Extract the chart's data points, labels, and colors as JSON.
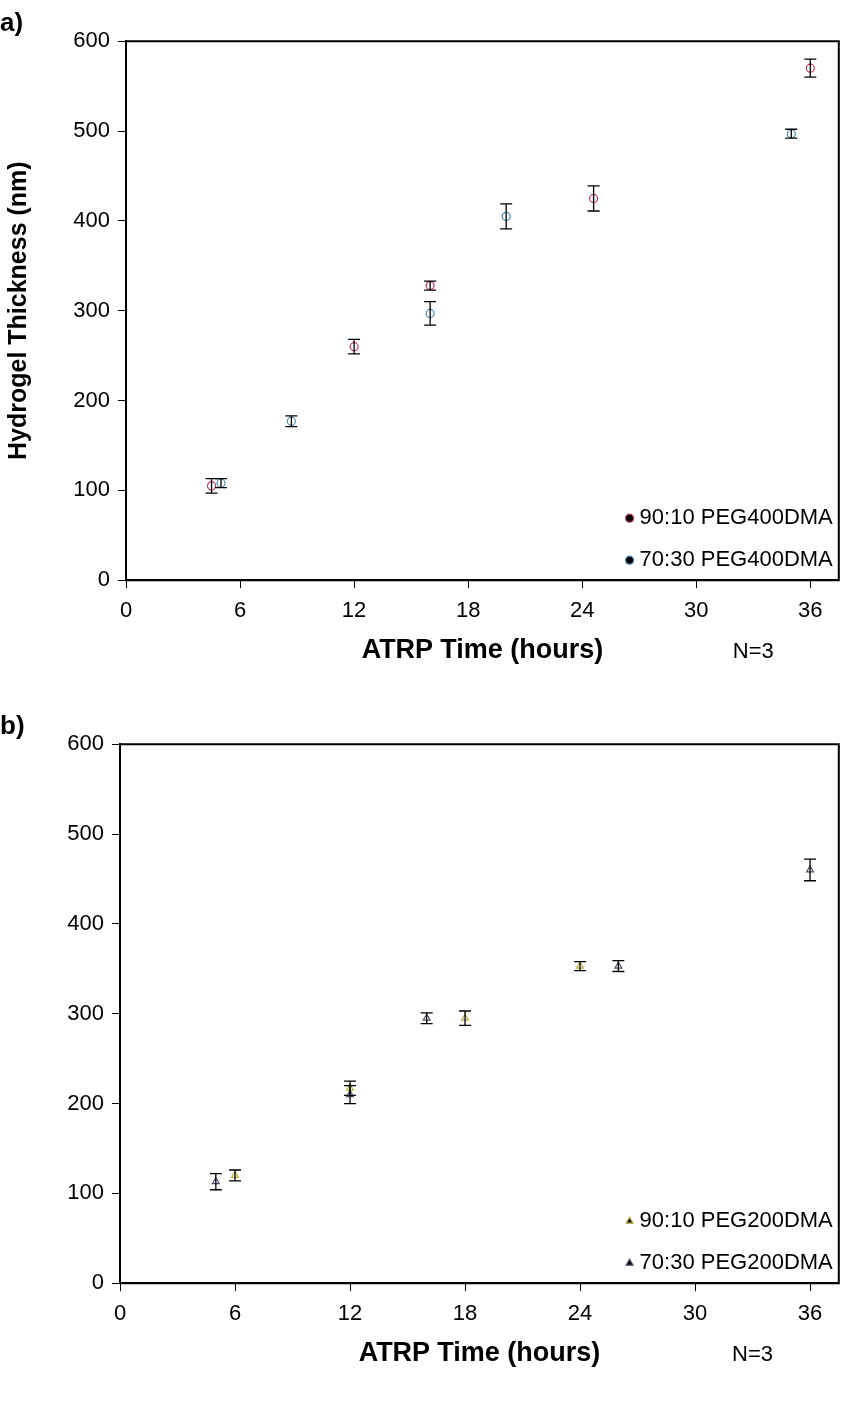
{
  "chart_data": [
    {
      "type": "scatter",
      "title": "a)",
      "xlabel": "ATRP Time (hours)",
      "ylabel": "Hydrogel Thickness (nm)",
      "xlim": [
        0,
        37.5
      ],
      "xticks": [
        0,
        6,
        12,
        18,
        24,
        30,
        36
      ],
      "ylim": [
        0,
        600
      ],
      "yticks": [
        0,
        100,
        200,
        300,
        400,
        500,
        600
      ],
      "grid": false,
      "legend": "bottom right",
      "marker": "circle",
      "annotations": [
        "N=3"
      ],
      "series": [
        {
          "name": "90:10 PEG400DMA",
          "color": "#c0395a",
          "x": [
            4.5,
            12,
            16,
            24.6,
            36
          ],
          "values": [
            105,
            260,
            328,
            425,
            570
          ],
          "errors": [
            8,
            8,
            5,
            14,
            10
          ]
        },
        {
          "name": "70:30 PEG400DMA",
          "color": "#4a8ab0",
          "x": [
            5,
            8.7,
            16,
            20,
            35
          ],
          "values": [
            108,
            177,
            297,
            405,
            497
          ],
          "errors": [
            5,
            6,
            13,
            14,
            5
          ]
        }
      ]
    },
    {
      "type": "scatter",
      "title": "b)",
      "xlabel": "ATRP Time (hours)",
      "xlim": [
        0,
        37.5
      ],
      "xticks": [
        0,
        6,
        12,
        18,
        24,
        30,
        36
      ],
      "ylim": [
        0,
        600
      ],
      "yticks": [
        0,
        100,
        200,
        300,
        400,
        500,
        600
      ],
      "grid": false,
      "legend": "bottom right",
      "marker": "triangle",
      "annotations": [
        "N=3"
      ],
      "series": [
        {
          "name": "90:10 PEG200DMA",
          "color": "#b8b040",
          "x": [
            6,
            12,
            18,
            24
          ],
          "values": [
            120,
            217,
            295,
            353
          ],
          "errors": [
            6,
            8,
            8,
            5
          ]
        },
        {
          "name": "70:30 PEG200DMA",
          "color": "#505070",
          "x": [
            5,
            12,
            16,
            26,
            36
          ],
          "values": [
            113,
            210,
            295,
            353,
            460
          ],
          "errors": [
            9,
            10,
            6,
            6,
            12
          ]
        }
      ]
    }
  ]
}
